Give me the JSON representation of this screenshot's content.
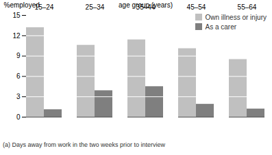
{
  "chart_data": {
    "type": "bar",
    "ylabel": "%employed",
    "xlabel": "age group (years)",
    "caption": "(a) Days away from work in the two weeks prior to interview",
    "categories": [
      "15–24",
      "25–34",
      "35–44",
      "45–54",
      "55–64"
    ],
    "series": [
      {
        "name": "Own illness or injury",
        "color": "#c0c0c0",
        "values": [
          13.2,
          10.6,
          11.4,
          10.1,
          8.5
        ]
      },
      {
        "name": "As a carer",
        "color": "#7f7f7f",
        "values": [
          1.1,
          3.9,
          4.5,
          1.9,
          1.2
        ]
      }
    ],
    "ylim": [
      0,
      15
    ],
    "yticks": [
      0,
      3,
      6,
      9,
      12,
      15
    ],
    "grid": true,
    "legend": "top-right"
  }
}
